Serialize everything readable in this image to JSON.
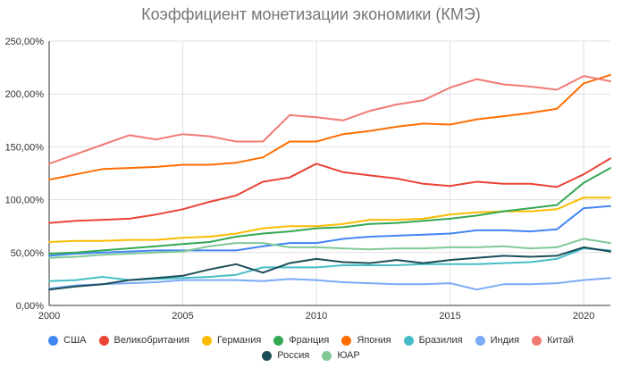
{
  "chart_data": {
    "type": "line",
    "title": "Коэффициент монетизации экономики (КМЭ)",
    "xlabel": "",
    "ylabel": "",
    "x": [
      2000,
      2001,
      2002,
      2003,
      2004,
      2005,
      2006,
      2007,
      2008,
      2009,
      2010,
      2011,
      2012,
      2013,
      2014,
      2015,
      2016,
      2017,
      2018,
      2019,
      2020,
      2021
    ],
    "xlim": [
      2000,
      2021
    ],
    "ylim": [
      0,
      250
    ],
    "x_ticks": [
      "2000",
      "2005",
      "2010",
      "2015",
      "2020"
    ],
    "y_ticks": [
      "0,00%",
      "50,00%",
      "100,00%",
      "150,00%",
      "200,00%",
      "250,00%"
    ],
    "grid": true,
    "legend_position": "bottom",
    "series": [
      {
        "name": "США",
        "color": "#4285F4",
        "values": [
          47,
          49,
          50,
          51,
          52,
          52,
          52,
          52,
          56,
          59,
          59,
          63,
          65,
          66,
          67,
          68,
          71,
          71,
          70,
          72,
          92,
          94
        ]
      },
      {
        "name": "Великобритания",
        "color": "#EA4335",
        "values": [
          78,
          80,
          81,
          82,
          86,
          91,
          98,
          104,
          117,
          121,
          134,
          126,
          123,
          120,
          115,
          113,
          117,
          115,
          115,
          112,
          124,
          139
        ]
      },
      {
        "name": "Германия",
        "color": "#FBBC04",
        "values": [
          60,
          61,
          61,
          62,
          62,
          64,
          65,
          68,
          73,
          75,
          75,
          77,
          81,
          81,
          82,
          86,
          88,
          89,
          89,
          91,
          102,
          102
        ]
      },
      {
        "name": "Франция",
        "color": "#34A853",
        "values": [
          49,
          50,
          52,
          54,
          56,
          58,
          60,
          65,
          68,
          70,
          73,
          74,
          77,
          78,
          80,
          82,
          85,
          89,
          92,
          95,
          116,
          130
        ]
      },
      {
        "name": "Япония",
        "color": "#FF6D01",
        "values": [
          119,
          124,
          129,
          130,
          131,
          133,
          133,
          135,
          140,
          155,
          155,
          162,
          165,
          169,
          172,
          171,
          176,
          179,
          182,
          186,
          210,
          218
        ]
      },
      {
        "name": "Бразилия",
        "color": "#46BDC6",
        "values": [
          23,
          24,
          27,
          24,
          25,
          26,
          27,
          29,
          36,
          36,
          36,
          38,
          38,
          38,
          39,
          39,
          39,
          40,
          41,
          44,
          54,
          52
        ]
      },
      {
        "name": "Индия",
        "color": "#7BAAF7",
        "values": [
          16,
          19,
          20,
          21,
          22,
          24,
          24,
          24,
          23,
          25,
          24,
          22,
          21,
          20,
          20,
          21,
          15,
          20,
          20,
          21,
          24,
          26
        ]
      },
      {
        "name": "Китай",
        "color": "#F07B72",
        "values": [
          134,
          143,
          152,
          161,
          157,
          162,
          160,
          155,
          155,
          180,
          178,
          175,
          184,
          190,
          194,
          206,
          214,
          209,
          207,
          204,
          217,
          212
        ]
      },
      {
        "name": "Россия",
        "color": "#1C4E5A",
        "values": [
          15,
          18,
          20,
          24,
          26,
          28,
          34,
          39,
          31,
          40,
          44,
          41,
          40,
          43,
          40,
          43,
          45,
          47,
          46,
          47,
          55,
          51
        ]
      },
      {
        "name": "ЮАР",
        "color": "#81C995",
        "values": [
          45,
          46,
          48,
          49,
          50,
          51,
          56,
          59,
          59,
          55,
          55,
          54,
          53,
          54,
          54,
          55,
          55,
          56,
          54,
          55,
          63,
          59
        ]
      }
    ]
  }
}
